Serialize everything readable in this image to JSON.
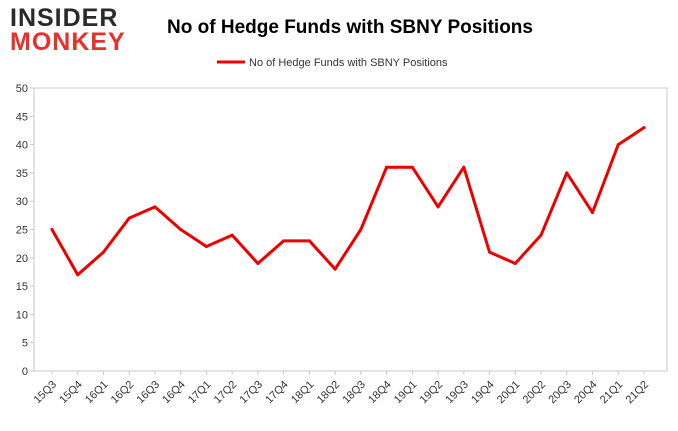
{
  "logo": {
    "line1": "INSIDER",
    "line2": "MONKEY"
  },
  "chart_data": {
    "type": "line",
    "title": "No of Hedge Funds with SBNY Positions",
    "xlabel": "",
    "ylabel": "",
    "categories": [
      "15Q3",
      "15Q4",
      "16Q1",
      "16Q2",
      "16Q3",
      "16Q4",
      "17Q1",
      "17Q2",
      "17Q3",
      "17Q4",
      "18Q1",
      "18Q2",
      "18Q3",
      "18Q4",
      "19Q1",
      "19Q2",
      "19Q3",
      "19Q4",
      "20Q1",
      "20Q2",
      "20Q3",
      "20Q4",
      "21Q1",
      "21Q2"
    ],
    "series": [
      {
        "name": "No of Hedge Funds with SBNY Positions",
        "values": [
          25,
          17,
          21,
          27,
          29,
          25,
          22,
          24,
          19,
          23,
          23,
          18,
          25,
          36,
          36,
          29,
          36,
          21,
          19,
          24,
          35,
          28,
          40,
          43
        ],
        "color": "#ee0000"
      }
    ],
    "ylim": [
      0,
      50
    ],
    "yticks": [
      0,
      5,
      10,
      15,
      20,
      25,
      30,
      35,
      40,
      45,
      50
    ],
    "grid": false,
    "legend": "top-center"
  }
}
